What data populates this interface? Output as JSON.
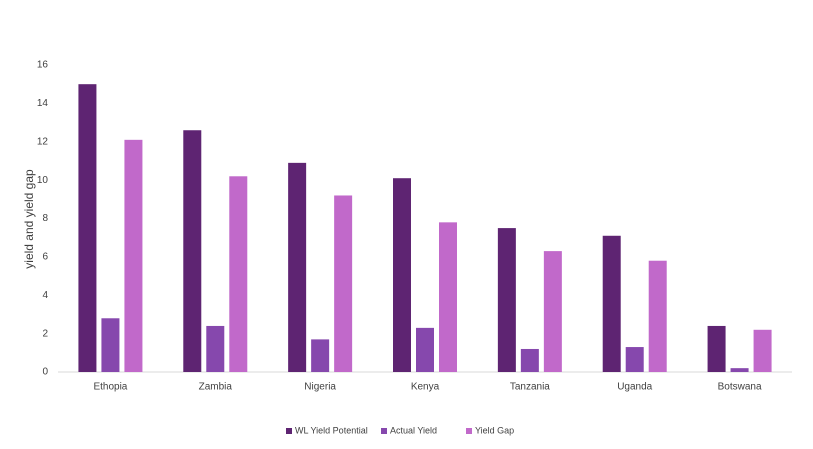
{
  "chart_data": {
    "type": "bar",
    "y_label": "yield and yield gap",
    "categories": [
      "Ethopia",
      "Zambia",
      "Nigeria",
      "Kenya",
      "Tanzania",
      "Uganda",
      "Botswana"
    ],
    "series": [
      {
        "name": "WL Yield Potential",
        "color": "#5e2472",
        "values": [
          15,
          12.6,
          10.9,
          10.1,
          7.5,
          7.1,
          2.4
        ]
      },
      {
        "name": "Actual Yield",
        "color": "#8648ad",
        "values": [
          2.8,
          2.4,
          1.7,
          2.3,
          1.2,
          1.3,
          0.2
        ]
      },
      {
        "name": "Yield Gap",
        "color": "#c169ca",
        "values": [
          12.1,
          10.2,
          9.2,
          7.8,
          6.3,
          5.8,
          2.2
        ]
      }
    ],
    "ylim": [
      0,
      16
    ],
    "yticks": [
      0,
      2,
      4,
      6,
      8,
      10,
      12,
      14,
      16
    ],
    "grid": false,
    "legend": "bottom"
  }
}
